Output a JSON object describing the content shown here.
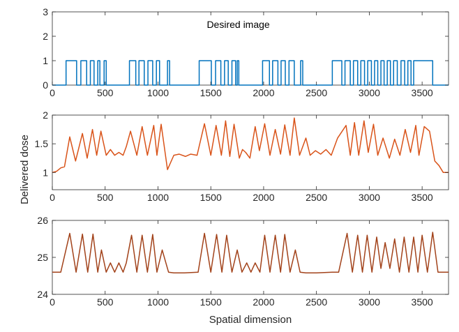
{
  "figure": {
    "ylabel": "Delivered dose",
    "xlabel": "Spatial dimension"
  },
  "chart_data": [
    {
      "type": "line",
      "annotation": "Desired image",
      "xlim": [
        0,
        3750
      ],
      "ylim": [
        0,
        3
      ],
      "xticks": [
        0,
        500,
        1000,
        1500,
        2000,
        2500,
        3000,
        3500
      ],
      "yticks": [
        0,
        1,
        2,
        3
      ],
      "color": "#0072BD",
      "series": [
        {
          "x": [
            0,
            130,
            130,
            230,
            230,
            270,
            270,
            325,
            325,
            360,
            360,
            395,
            395,
            430,
            430,
            450,
            450,
            490,
            490,
            510,
            510,
            730,
            730,
            790,
            790,
            820,
            820,
            870,
            870,
            905,
            905,
            950,
            950,
            985,
            985,
            1015,
            1015,
            1090,
            1090,
            1110,
            1110,
            1390,
            1390,
            1505,
            1505,
            1545,
            1545,
            1595,
            1595,
            1630,
            1630,
            1665,
            1665,
            1700,
            1700,
            1735,
            1735,
            1750,
            1750,
            1765,
            1765,
            1990,
            1990,
            2055,
            2055,
            2085,
            2085,
            2135,
            2135,
            2165,
            2165,
            2205,
            2205,
            2240,
            2240,
            2290,
            2290,
            2350,
            2350,
            2370,
            2370,
            2650,
            2650,
            2740,
            2740,
            2770,
            2770,
            2820,
            2820,
            2850,
            2850,
            2890,
            2890,
            2920,
            2920,
            2955,
            2955,
            2985,
            2985,
            3020,
            3020,
            3050,
            3050,
            3080,
            3080,
            3110,
            3110,
            3140,
            3140,
            3170,
            3170,
            3200,
            3200,
            3230,
            3230,
            3265,
            3265,
            3300,
            3300,
            3335,
            3335,
            3365,
            3365,
            3395,
            3395,
            3420,
            3420,
            3600,
            3600,
            3750
          ],
          "y": [
            0,
            0,
            1,
            1,
            0,
            0,
            1,
            1,
            0,
            0,
            1,
            1,
            0,
            0,
            1,
            1,
            0,
            0,
            1,
            1,
            0,
            0,
            1,
            1,
            0,
            0,
            1,
            1,
            0,
            0,
            1,
            1,
            0,
            0,
            1,
            1,
            0,
            0,
            1,
            1,
            0,
            0,
            1,
            1,
            0,
            0,
            1,
            1,
            0,
            0,
            1,
            1,
            0,
            0,
            1,
            1,
            0,
            0,
            1,
            1,
            0,
            0,
            1,
            1,
            0,
            0,
            1,
            1,
            0,
            0,
            1,
            1,
            0,
            0,
            1,
            1,
            0,
            0,
            1,
            1,
            0,
            0,
            1,
            1,
            0,
            0,
            1,
            1,
            0,
            0,
            1,
            1,
            0,
            0,
            1,
            1,
            0,
            0,
            1,
            1,
            0,
            0,
            1,
            1,
            0,
            0,
            1,
            1,
            0,
            0,
            1,
            1,
            0,
            0,
            1,
            1,
            0,
            0,
            1,
            1,
            0,
            0,
            1,
            1,
            0,
            0,
            1,
            1,
            0,
            0
          ]
        }
      ]
    },
    {
      "type": "line",
      "xlim": [
        0,
        3750
      ],
      "ylim": [
        0.7,
        2
      ],
      "xticks": [
        0,
        500,
        1000,
        1500,
        2000,
        2500,
        3000,
        3500
      ],
      "yticks": [
        1,
        1.5,
        2
      ],
      "color": "#D95319",
      "series": [
        {
          "x": [
            0,
            40,
            80,
            115,
            165,
            220,
            285,
            330,
            380,
            420,
            460,
            510,
            550,
            590,
            630,
            670,
            700,
            740,
            800,
            850,
            900,
            960,
            990,
            1030,
            1090,
            1150,
            1200,
            1260,
            1310,
            1370,
            1440,
            1500,
            1550,
            1600,
            1640,
            1680,
            1720,
            1770,
            1800,
            1830,
            1870,
            1920,
            1960,
            2010,
            2060,
            2110,
            2160,
            2200,
            2250,
            2290,
            2340,
            2400,
            2440,
            2490,
            2540,
            2590,
            2640,
            2700,
            2780,
            2820,
            2860,
            2900,
            2950,
            2990,
            3040,
            3080,
            3130,
            3190,
            3240,
            3290,
            3340,
            3390,
            3440,
            3470,
            3520,
            3570,
            3620,
            3660,
            3700,
            3750
          ],
          "y": [
            1.0,
            1.02,
            1.08,
            1.1,
            1.62,
            1.2,
            1.68,
            1.25,
            1.75,
            1.3,
            1.72,
            1.3,
            1.4,
            1.3,
            1.35,
            1.3,
            1.45,
            1.72,
            1.3,
            1.8,
            1.3,
            1.82,
            1.3,
            1.84,
            1.05,
            1.3,
            1.32,
            1.28,
            1.32,
            1.3,
            1.85,
            1.3,
            1.82,
            1.3,
            1.9,
            1.28,
            1.84,
            1.25,
            1.4,
            1.35,
            1.25,
            1.8,
            1.38,
            1.85,
            1.3,
            1.75,
            1.32,
            1.83,
            1.3,
            1.95,
            1.3,
            1.6,
            1.3,
            1.38,
            1.32,
            1.4,
            1.3,
            1.6,
            1.82,
            1.3,
            1.87,
            1.3,
            1.9,
            1.35,
            1.84,
            1.3,
            1.6,
            1.25,
            1.58,
            1.3,
            1.75,
            1.35,
            1.82,
            1.3,
            1.8,
            1.72,
            1.2,
            1.12,
            1.0,
            1.0
          ]
        }
      ]
    },
    {
      "type": "line",
      "xlim": [
        0,
        3750
      ],
      "ylim": [
        24,
        26
      ],
      "xticks": [
        0,
        500,
        1000,
        1500,
        2000,
        2500,
        3000,
        3500
      ],
      "yticks": [
        24,
        25,
        26
      ],
      "color": "#A2421A",
      "series": [
        {
          "x": [
            0,
            80,
            165,
            225,
            285,
            335,
            385,
            430,
            465,
            510,
            550,
            590,
            630,
            670,
            700,
            750,
            800,
            850,
            900,
            950,
            990,
            1040,
            1100,
            1150,
            1250,
            1380,
            1440,
            1500,
            1555,
            1605,
            1650,
            1700,
            1750,
            1795,
            1840,
            1880,
            1920,
            1965,
            2010,
            2060,
            2110,
            2160,
            2200,
            2250,
            2300,
            2345,
            2400,
            2500,
            2650,
            2710,
            2790,
            2840,
            2890,
            2935,
            2980,
            3025,
            3070,
            3110,
            3150,
            3195,
            3240,
            3285,
            3330,
            3375,
            3420,
            3460,
            3500,
            3550,
            3600,
            3650,
            3750
          ],
          "y": [
            24.6,
            24.6,
            25.65,
            24.6,
            25.63,
            24.6,
            25.63,
            24.6,
            25.2,
            24.6,
            24.85,
            24.6,
            24.85,
            24.6,
            24.85,
            25.6,
            24.6,
            25.6,
            24.6,
            25.62,
            24.6,
            25.2,
            24.6,
            24.58,
            24.58,
            24.6,
            25.65,
            24.6,
            25.62,
            24.6,
            25.6,
            24.6,
            25.2,
            24.6,
            24.85,
            24.6,
            24.85,
            24.6,
            25.6,
            24.6,
            25.6,
            24.6,
            25.62,
            24.6,
            25.2,
            24.6,
            24.58,
            24.58,
            24.6,
            24.6,
            25.65,
            24.6,
            25.6,
            24.6,
            25.6,
            24.6,
            25.55,
            24.7,
            25.4,
            24.7,
            25.5,
            24.6,
            25.55,
            24.6,
            25.55,
            24.6,
            25.6,
            24.6,
            25.68,
            24.6,
            24.6
          ]
        }
      ]
    }
  ]
}
